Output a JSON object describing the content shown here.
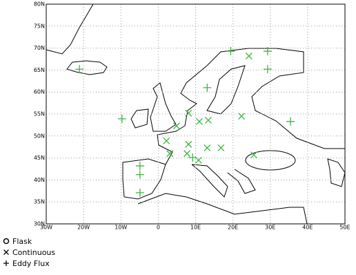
{
  "chart_data": {
    "type": "scatter",
    "xlim": [
      -30,
      50
    ],
    "ylim": [
      30,
      80
    ],
    "xticks": [
      {
        "value": -30,
        "label": "30W"
      },
      {
        "value": -20,
        "label": "20W"
      },
      {
        "value": -10,
        "label": "10W"
      },
      0,
      {
        "value": 10,
        "label": "10E"
      },
      {
        "value": 20,
        "label": "20E"
      },
      {
        "value": 30,
        "label": "30E"
      },
      {
        "value": 40,
        "label": "40E"
      },
      {
        "value": 50,
        "label": "50E"
      }
    ],
    "yticks": [
      {
        "value": 30,
        "label": "30N"
      },
      {
        "value": 35,
        "label": "35N"
      },
      {
        "value": 40,
        "label": "40N"
      },
      {
        "value": 45,
        "label": "45N"
      },
      {
        "value": 50,
        "label": "50N"
      },
      {
        "value": 55,
        "label": "55N"
      },
      {
        "value": 60,
        "label": "60N"
      },
      {
        "value": 65,
        "label": "65N"
      },
      {
        "value": 70,
        "label": "70N"
      },
      {
        "value": 75,
        "label": "75N"
      },
      {
        "value": 80,
        "label": "80N"
      }
    ],
    "grid": true,
    "series": [
      {
        "name": "Flask",
        "marker": "circle",
        "color": "#3cb43c",
        "x": [],
        "values": []
      },
      {
        "name": "Continuous",
        "marker": "cross",
        "color": "#3cb43c",
        "x": [
          24.3,
          8.1,
          4.9,
          11.0,
          13.4,
          22.3,
          2.2,
          8.1,
          3.1,
          7.7,
          13.1,
          16.8,
          25.6,
          10.8
        ],
        "values": [
          68.2,
          55.2,
          52.3,
          53.3,
          53.6,
          54.5,
          48.9,
          48.1,
          46.0,
          46.0,
          47.3,
          47.3,
          45.7,
          44.5
        ]
      },
      {
        "name": "Eddy Flux",
        "marker": "plus",
        "color": "#3cb43c",
        "x": [
          -21.1,
          -9.7,
          -4.9,
          -4.9,
          -4.9,
          13.1,
          19.4,
          29.3,
          29.3,
          35.4,
          9.2
        ],
        "values": [
          65.2,
          53.9,
          43.2,
          41.2,
          37.1,
          61.0,
          69.3,
          69.3,
          65.2,
          53.3,
          45.1
        ]
      }
    ]
  }
}
